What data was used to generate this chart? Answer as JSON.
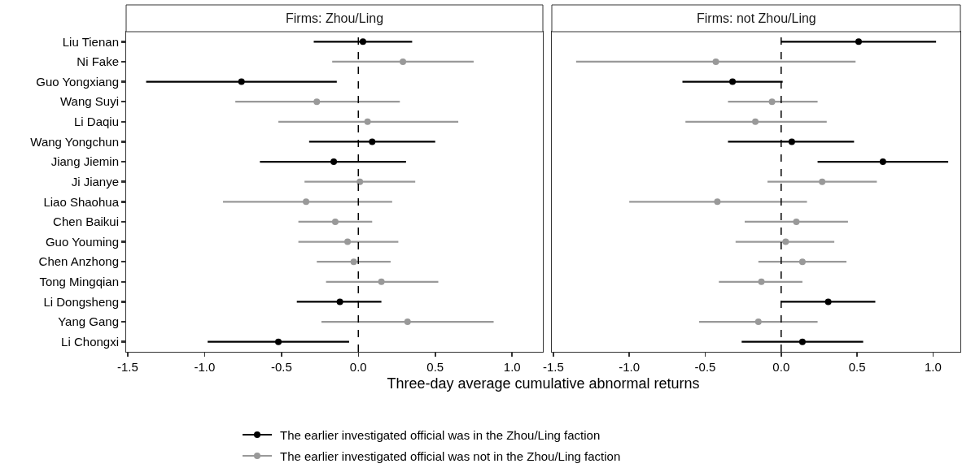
{
  "chart_data": [
    {
      "type": "scatter",
      "title": "Firms: Zhou/Ling",
      "xlabel": "Three-day average cumulative abnormal returns",
      "orientation": "horizontal",
      "categories": [
        "Liu Tienan",
        "Ni Fake",
        "Guo Yongxiang",
        "Wang Suyi",
        "Li Daqiu",
        "Wang Yongchun",
        "Jiang Jiemin",
        "Ji Jianye",
        "Liao Shaohua",
        "Chen Baikui",
        "Guo Youming",
        "Chen Anzhong",
        "Tong Mingqian",
        "Li Dongsheng",
        "Yang Gang",
        "Li Chongxi"
      ],
      "xlim": [
        -1.51,
        1.2
      ],
      "xticks": [
        {
          "value": -1.5,
          "label": "-1.5"
        },
        {
          "value": -1,
          "label": "-1.0"
        },
        {
          "value": -0.5,
          "label": "-0.5"
        },
        {
          "value": 0,
          "label": "0.0"
        },
        {
          "value": 0.5,
          "label": "0.5"
        },
        {
          "value": 1,
          "label": "1.0"
        }
      ],
      "grid": false,
      "legend": "bottom",
      "marker": "circle",
      "ref_lines": [
        {
          "axis": "x",
          "value": 0,
          "line_style": "dashed",
          "color": "#000000"
        }
      ],
      "series": [
        {
          "name": "The earlier investigated official was in the Zhou/Ling faction",
          "color": "#000000",
          "values": [
            0.03,
            null,
            -0.76,
            null,
            null,
            0.09,
            -0.16,
            null,
            null,
            null,
            null,
            null,
            null,
            -0.12,
            null,
            -0.52
          ],
          "errors": [
            [
              -0.29,
              0.35
            ],
            null,
            [
              -1.38,
              -0.14
            ],
            null,
            null,
            [
              -0.32,
              0.5
            ],
            [
              -0.64,
              0.31
            ],
            null,
            null,
            null,
            null,
            null,
            null,
            [
              -0.4,
              0.15
            ],
            null,
            [
              -0.98,
              -0.06
            ]
          ]
        },
        {
          "name": "The earlier investigated official was not in the Zhou/Ling faction",
          "color": "#999999",
          "values": [
            null,
            0.29,
            null,
            -0.27,
            0.06,
            null,
            null,
            0.01,
            -0.34,
            -0.15,
            -0.07,
            -0.03,
            0.15,
            null,
            0.32,
            null
          ],
          "errors": [
            null,
            [
              -0.17,
              0.75
            ],
            null,
            [
              -0.8,
              0.27
            ],
            [
              -0.52,
              0.65
            ],
            null,
            null,
            [
              -0.35,
              0.37
            ],
            [
              -0.88,
              0.22
            ],
            [
              -0.39,
              0.09
            ],
            [
              -0.39,
              0.26
            ],
            [
              -0.27,
              0.21
            ],
            [
              -0.21,
              0.52
            ],
            null,
            [
              -0.24,
              0.88
            ],
            null
          ]
        }
      ]
    },
    {
      "type": "scatter",
      "title": "Firms: not Zhou/Ling",
      "orientation": "horizontal",
      "tick_labels": "x",
      "categories": [
        null,
        null,
        null,
        null,
        null,
        null,
        null,
        null,
        null,
        null,
        null,
        null,
        null,
        null,
        null,
        null
      ],
      "xlim": [
        -1.51,
        1.18
      ],
      "xticks": [
        {
          "value": -1.5,
          "label": "-1.5"
        },
        {
          "value": -1,
          "label": "-1.0"
        },
        {
          "value": -0.5,
          "label": "-0.5"
        },
        {
          "value": 0,
          "label": "0.0"
        },
        {
          "value": 0.5,
          "label": "0.5"
        },
        {
          "value": 1,
          "label": "1.0"
        }
      ],
      "grid": false,
      "legend": "bottom",
      "marker": "circle",
      "ref_lines": [
        {
          "axis": "x",
          "value": 0,
          "line_style": "dashed",
          "color": "#000000"
        }
      ],
      "series": [
        {
          "name": "The earlier investigated official was in the Zhou/Ling faction",
          "color": "#000000",
          "values": [
            0.51,
            null,
            -0.32,
            null,
            null,
            0.07,
            0.67,
            null,
            null,
            null,
            null,
            null,
            null,
            0.31,
            null,
            0.14
          ],
          "errors": [
            [
              0,
              1.02
            ],
            null,
            [
              -0.65,
              0.01
            ],
            null,
            null,
            [
              -0.35,
              0.48
            ],
            [
              0.24,
              1.1
            ],
            null,
            null,
            null,
            null,
            null,
            null,
            [
              0,
              0.62
            ],
            null,
            [
              -0.26,
              0.54
            ]
          ]
        },
        {
          "name": "The earlier investigated official was not in the Zhou/Ling faction",
          "color": "#999999",
          "values": [
            null,
            -0.43,
            null,
            -0.06,
            -0.17,
            null,
            null,
            0.27,
            -0.42,
            0.1,
            0.03,
            0.14,
            -0.13,
            null,
            -0.15,
            null
          ],
          "errors": [
            null,
            [
              -1.35,
              0.49
            ],
            null,
            [
              -0.35,
              0.24
            ],
            [
              -0.63,
              0.3
            ],
            null,
            null,
            [
              -0.09,
              0.63
            ],
            [
              -1,
              0.17
            ],
            [
              -0.24,
              0.44
            ],
            [
              -0.3,
              0.35
            ],
            [
              -0.15,
              0.43
            ],
            [
              -0.41,
              0.14
            ],
            null,
            [
              -0.54,
              0.24
            ],
            null
          ]
        }
      ]
    }
  ]
}
